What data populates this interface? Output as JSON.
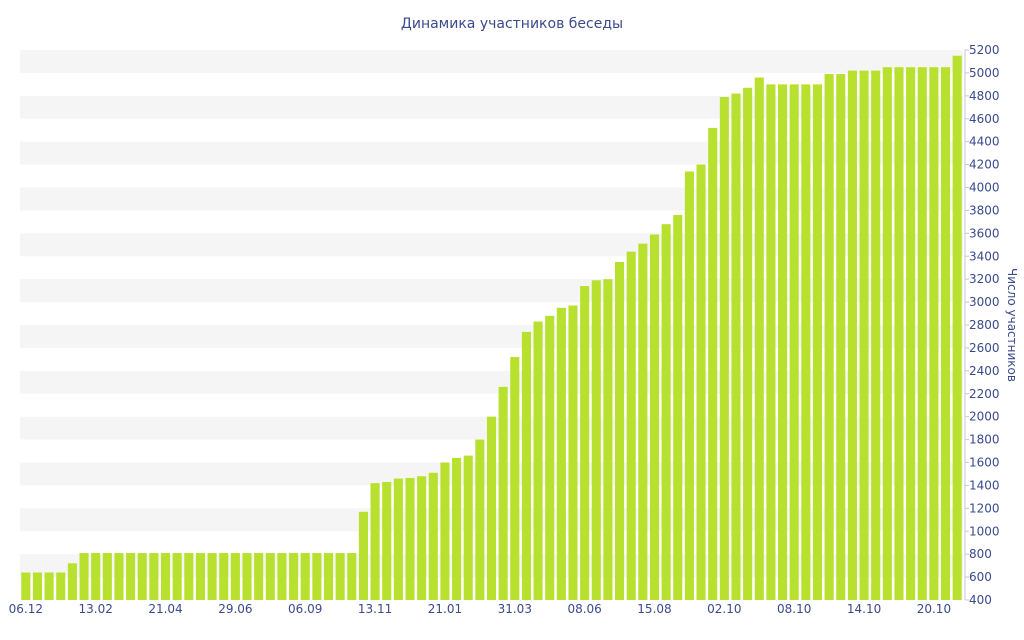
{
  "chart_data": {
    "type": "bar",
    "title": "Динамика участников беседы",
    "ylabel": "Число участников",
    "ylim": [
      400,
      5200
    ],
    "yticks": [
      400,
      600,
      800,
      1000,
      1200,
      1400,
      1600,
      1800,
      2000,
      2200,
      2400,
      2600,
      2800,
      3000,
      3200,
      3400,
      3600,
      3800,
      4000,
      4200,
      4400,
      4600,
      4800,
      5000,
      5200
    ],
    "xtick_labels": [
      "06.12",
      "13.02",
      "21.04",
      "29.06",
      "06.09",
      "13.11",
      "21.01",
      "31.03",
      "08.06",
      "15.08",
      "02.10",
      "08.10",
      "14.10",
      "20.10"
    ],
    "xtick_positions": [
      0,
      6,
      12,
      18,
      24,
      30,
      36,
      42,
      48,
      54,
      60,
      66,
      72,
      78
    ],
    "y_axis_position": "right",
    "grid": "alternating horizontal bands",
    "colors": {
      "bar": "#b8e02e",
      "band": "#f5f5f5",
      "text": "#3a4a8c"
    },
    "values": [
      640,
      640,
      640,
      640,
      720,
      810,
      810,
      810,
      810,
      810,
      810,
      810,
      810,
      810,
      810,
      810,
      810,
      810,
      810,
      810,
      810,
      810,
      810,
      810,
      810,
      810,
      810,
      810,
      810,
      1170,
      1420,
      1430,
      1460,
      1465,
      1480,
      1510,
      1600,
      1640,
      1660,
      1800,
      2000,
      2260,
      2520,
      2740,
      2830,
      2880,
      2950,
      2970,
      3140,
      3190,
      3200,
      3350,
      3440,
      3510,
      3590,
      3680,
      3760,
      4140,
      4200,
      4520,
      4790,
      4820,
      4870,
      4960,
      4900,
      4900,
      4900,
      4900,
      4900,
      4990,
      4990,
      5020,
      5020,
      5020,
      5050,
      5050,
      5050,
      5050,
      5050,
      5050,
      5150
    ]
  }
}
